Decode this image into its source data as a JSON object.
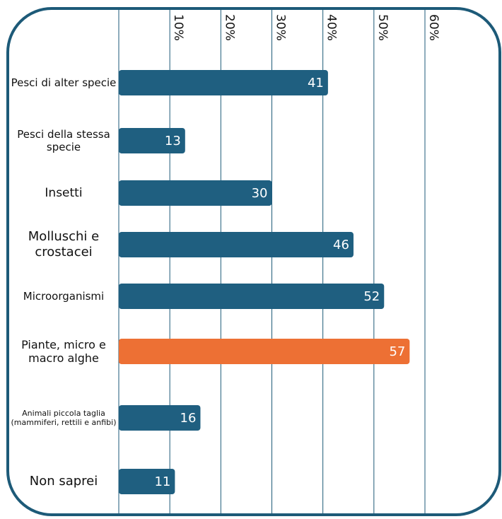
{
  "chart_data": {
    "type": "barh",
    "categories": [
      "Pesci di alter specie",
      "Pesci della stessa specie",
      "Insetti",
      "Molluschi e crostacei",
      "Microorganismi",
      "Piante, micro e macro alghe",
      "Animali piccola taglia (mammiferi, rettili e anfibi)",
      "Non saprei"
    ],
    "values": [
      41,
      13,
      30,
      46,
      52,
      57,
      16,
      11
    ],
    "colors": [
      "#1f5f80",
      "#1f5f80",
      "#1f5f80",
      "#1f5f80",
      "#1f5f80",
      "#ed7034",
      "#1f5f80",
      "#1f5f80"
    ],
    "xlim": [
      0,
      60
    ],
    "xticks": [
      {
        "value": 10,
        "label": "10%"
      },
      {
        "value": 20,
        "label": "20%"
      },
      {
        "value": 30,
        "label": "30%"
      },
      {
        "value": 40,
        "label": "40%"
      },
      {
        "value": 50,
        "label": "50%"
      },
      {
        "value": 60,
        "label": "60%"
      }
    ],
    "grid": true
  }
}
